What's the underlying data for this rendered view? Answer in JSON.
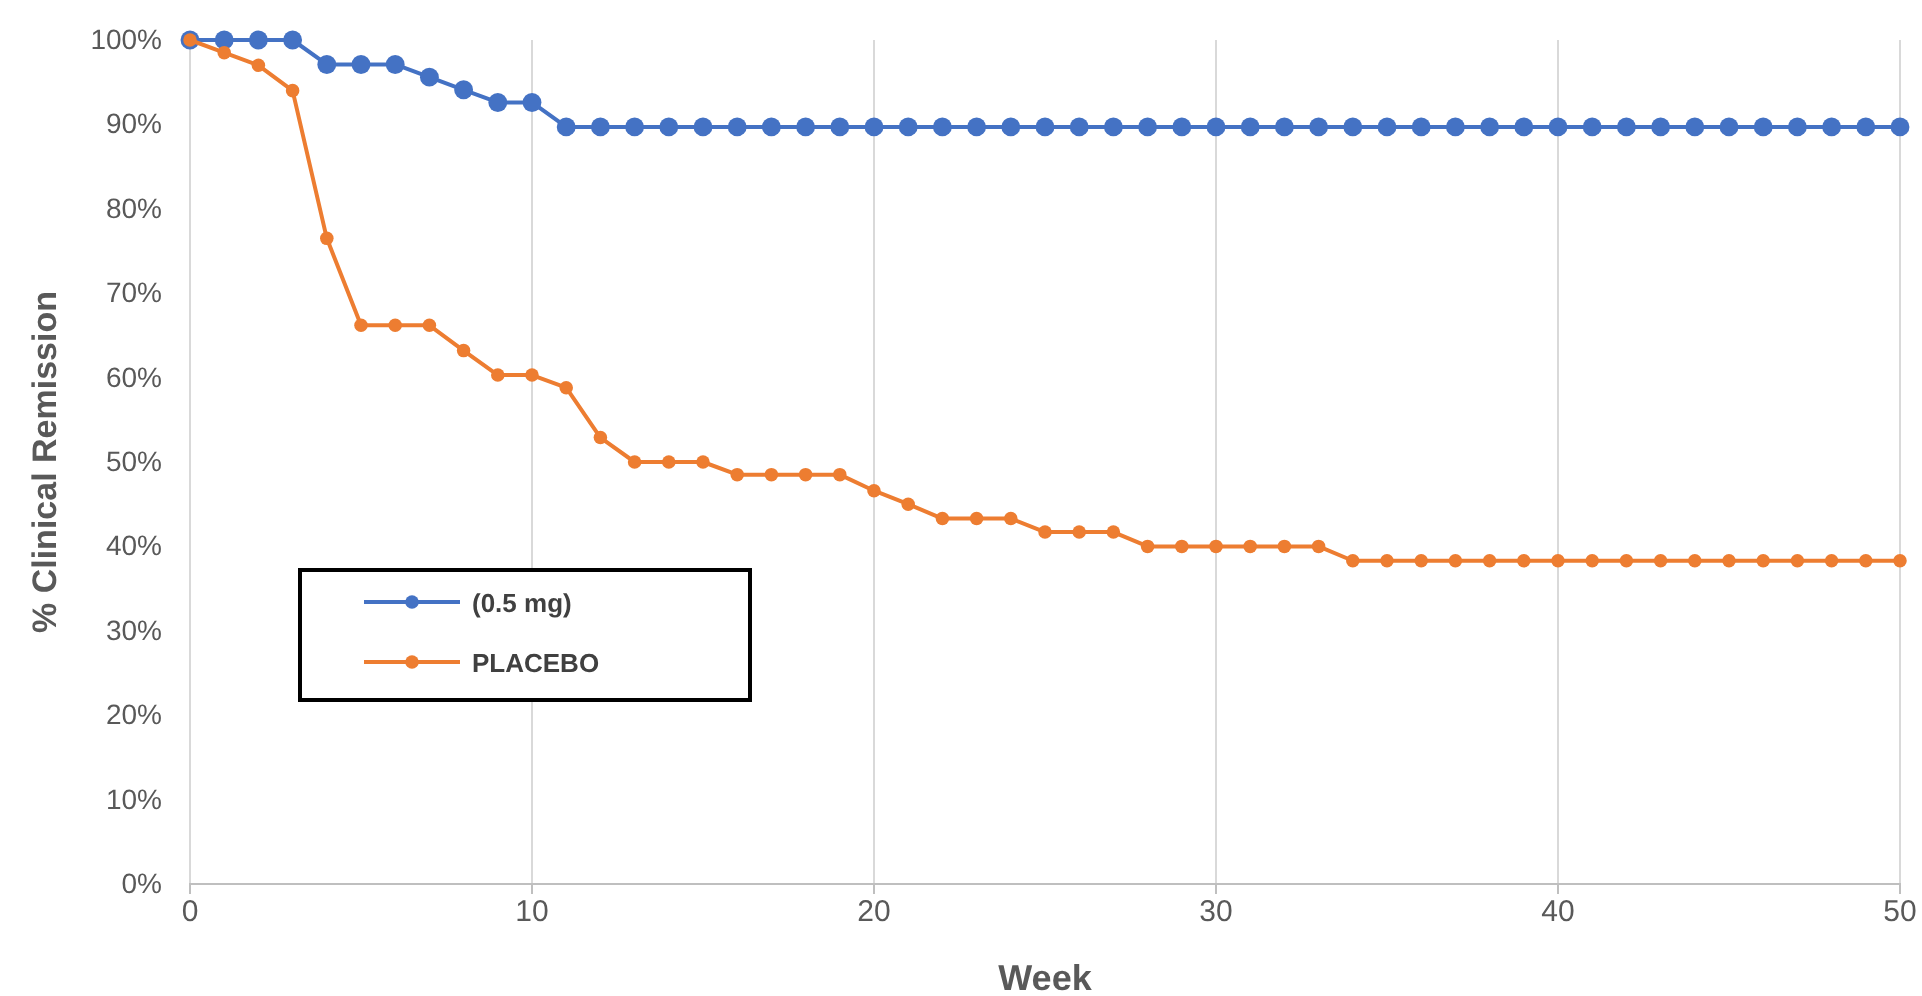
{
  "chart_data": {
    "type": "line",
    "xlabel": "Week",
    "ylabel": "% Clinical Remission",
    "x": [
      0,
      1,
      2,
      3,
      4,
      5,
      6,
      7,
      8,
      9,
      10,
      11,
      12,
      13,
      14,
      15,
      16,
      17,
      18,
      19,
      20,
      21,
      22,
      23,
      24,
      25,
      26,
      27,
      28,
      29,
      30,
      31,
      32,
      33,
      34,
      35,
      36,
      37,
      38,
      39,
      40,
      41,
      42,
      43,
      44,
      45,
      46,
      47,
      48,
      49,
      50
    ],
    "series": [
      {
        "name": "(0.5 mg)",
        "color": "#4472c4",
        "values": [
          100,
          100,
          100,
          100,
          97.1,
          97.1,
          97.1,
          95.6,
          94.1,
          92.6,
          92.6,
          89.7,
          89.7,
          89.7,
          89.7,
          89.7,
          89.7,
          89.7,
          89.7,
          89.7,
          89.7,
          89.7,
          89.7,
          89.7,
          89.7,
          89.7,
          89.7,
          89.7,
          89.7,
          89.7,
          89.7,
          89.7,
          89.7,
          89.7,
          89.7,
          89.7,
          89.7,
          89.7,
          89.7,
          89.7,
          89.7,
          89.7,
          89.7,
          89.7,
          89.7,
          89.7,
          89.7,
          89.7,
          89.7,
          89.7,
          89.7
        ]
      },
      {
        "name": "PLACEBO",
        "color": "#ed7d31",
        "values": [
          100,
          98.5,
          97,
          94,
          76.5,
          66.2,
          66.2,
          66.2,
          63.2,
          60.3,
          60.3,
          58.8,
          52.9,
          50,
          50,
          50,
          48.5,
          48.5,
          48.5,
          48.5,
          46.6,
          45,
          43.3,
          43.3,
          43.3,
          41.7,
          41.7,
          41.7,
          40,
          40,
          40,
          40,
          40,
          40,
          38.3,
          38.3,
          38.3,
          38.3,
          38.3,
          38.3,
          38.3,
          38.3,
          38.3,
          38.3,
          38.3,
          38.3,
          38.3,
          38.3,
          38.3,
          38.3,
          38.3
        ]
      }
    ],
    "xlim": [
      0,
      50
    ],
    "xticks": [
      0,
      10,
      20,
      30,
      40,
      50
    ],
    "ylim": [
      0,
      100
    ],
    "yticks": [
      {
        "value": 0,
        "label": "0%"
      },
      {
        "value": 10,
        "label": "10%"
      },
      {
        "value": 20,
        "label": "20%"
      },
      {
        "value": 30,
        "label": "30%"
      },
      {
        "value": 40,
        "label": "40%"
      },
      {
        "value": 50,
        "label": "50%"
      },
      {
        "value": 60,
        "label": "60%"
      },
      {
        "value": 70,
        "label": "70%"
      },
      {
        "value": 80,
        "label": "80%"
      },
      {
        "value": 90,
        "label": "90%"
      },
      {
        "value": 100,
        "label": "100%"
      }
    ],
    "grid": "x",
    "legend": "left",
    "marker": "circle",
    "line_style": "solid"
  }
}
